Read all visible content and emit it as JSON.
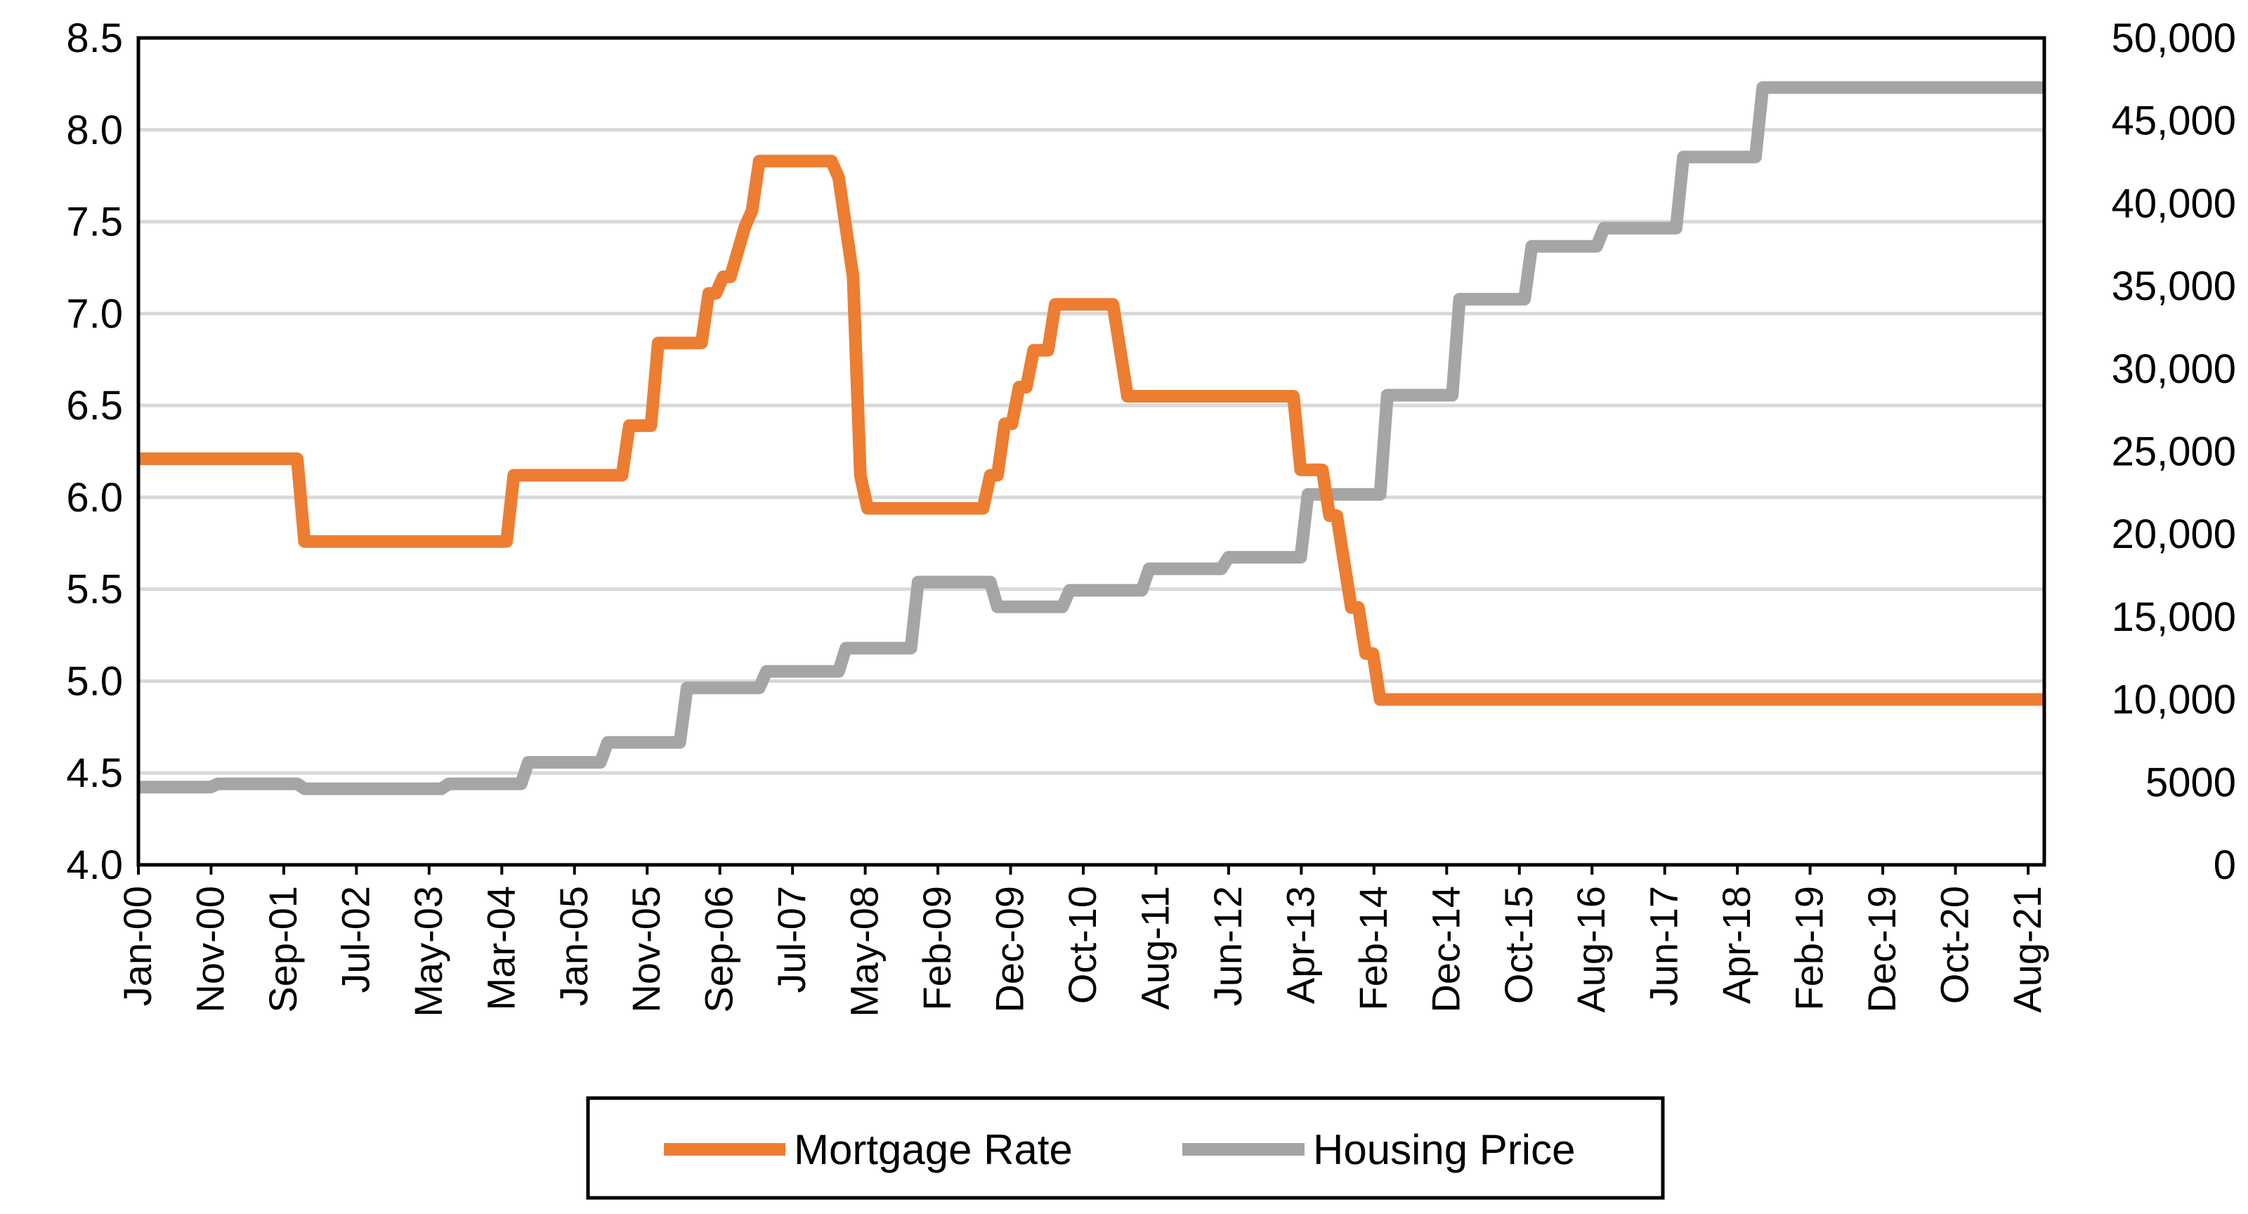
{
  "chart_data": {
    "type": "line",
    "title": "",
    "xlabel": "",
    "ylabel": "",
    "y2label": "",
    "ylim": [
      4.0,
      8.5
    ],
    "y2lim": [
      0,
      50000
    ],
    "yticks": [
      "4.0",
      "4.5",
      "5.0",
      "5.5",
      "6.0",
      "6.5",
      "7.0",
      "7.5",
      "8.0",
      "8.5"
    ],
    "y2ticks": [
      "0",
      "5000",
      "10,000",
      "15,000",
      "20,000",
      "25,000",
      "30,000",
      "35,000",
      "40,000",
      "45,000",
      "50,000"
    ],
    "xticks": [
      "Jan-00",
      "Nov-00",
      "Sep-01",
      "Jul-02",
      "May-03",
      "Mar-04",
      "Jan-05",
      "Nov-05",
      "Sep-06",
      "Jul-07",
      "May-08",
      "Feb-09",
      "Dec-09",
      "Oct-10",
      "Aug-11",
      "Jun-12",
      "Apr-13",
      "Feb-14",
      "Dec-14",
      "Oct-15",
      "Aug-16",
      "Jun-17",
      "Apr-18",
      "Feb-19",
      "Dec-19",
      "Oct-20",
      "Aug-21"
    ],
    "x_index_max": 264,
    "legend_position": "bottom",
    "grid": true,
    "series": [
      {
        "name": "Mortgage Rate",
        "axis": "left",
        "color": "#ED7D31",
        "points": [
          [
            0,
            6.21
          ],
          [
            22,
            6.21
          ],
          [
            23,
            5.76
          ],
          [
            51,
            5.76
          ],
          [
            52,
            6.12
          ],
          [
            67,
            6.12
          ],
          [
            68,
            6.39
          ],
          [
            71,
            6.39
          ],
          [
            72,
            6.84
          ],
          [
            78,
            6.84
          ],
          [
            79,
            7.11
          ],
          [
            80,
            7.11
          ],
          [
            81,
            7.2
          ],
          [
            82,
            7.2
          ],
          [
            84,
            7.47
          ],
          [
            85,
            7.56
          ],
          [
            86,
            7.83
          ],
          [
            96,
            7.83
          ],
          [
            97,
            7.74
          ],
          [
            98,
            7.47
          ],
          [
            99,
            7.2
          ],
          [
            100,
            6.12
          ],
          [
            101,
            5.94
          ],
          [
            117,
            5.94
          ],
          [
            118,
            6.12
          ],
          [
            119,
            6.12
          ],
          [
            120,
            6.4
          ],
          [
            121,
            6.4
          ],
          [
            122,
            6.6
          ],
          [
            123,
            6.6
          ],
          [
            124,
            6.8
          ],
          [
            126,
            6.8
          ],
          [
            127,
            7.05
          ],
          [
            135,
            7.05
          ],
          [
            136,
            6.8
          ],
          [
            137,
            6.55
          ],
          [
            160,
            6.55
          ],
          [
            161,
            6.15
          ],
          [
            164,
            6.15
          ],
          [
            165,
            5.9
          ],
          [
            166,
            5.9
          ],
          [
            167,
            5.65
          ],
          [
            168,
            5.4
          ],
          [
            169,
            5.4
          ],
          [
            170,
            5.15
          ],
          [
            171,
            5.15
          ],
          [
            172,
            4.9
          ],
          [
            264,
            4.9
          ]
        ]
      },
      {
        "name": "Housing Price",
        "axis": "right",
        "color": "#A5A5A5",
        "points": [
          [
            0,
            4700
          ],
          [
            10,
            4700
          ],
          [
            11,
            4900
          ],
          [
            22,
            4900
          ],
          [
            23,
            4600
          ],
          [
            42,
            4600
          ],
          [
            43,
            4900
          ],
          [
            53,
            4900
          ],
          [
            54,
            6200
          ],
          [
            64,
            6200
          ],
          [
            65,
            7400
          ],
          [
            75,
            7400
          ],
          [
            76,
            10700
          ],
          [
            86,
            10700
          ],
          [
            87,
            11700
          ],
          [
            97,
            11700
          ],
          [
            98,
            13100
          ],
          [
            107,
            13100
          ],
          [
            108,
            17100
          ],
          [
            118,
            17100
          ],
          [
            119,
            15600
          ],
          [
            128,
            15600
          ],
          [
            129,
            16600
          ],
          [
            139,
            16600
          ],
          [
            140,
            17900
          ],
          [
            150,
            17900
          ],
          [
            151,
            18600
          ],
          [
            161,
            18600
          ],
          [
            162,
            22400
          ],
          [
            170,
            22400
          ],
          [
            171,
            22400
          ],
          [
            172,
            22400
          ],
          [
            173,
            28400
          ],
          [
            182,
            28400
          ],
          [
            183,
            34200
          ],
          [
            192,
            34200
          ],
          [
            193,
            37400
          ],
          [
            202,
            37400
          ],
          [
            203,
            38500
          ],
          [
            213,
            38500
          ],
          [
            214,
            42800
          ],
          [
            224,
            42800
          ],
          [
            225,
            47000
          ],
          [
            264,
            47000
          ]
        ]
      }
    ]
  }
}
